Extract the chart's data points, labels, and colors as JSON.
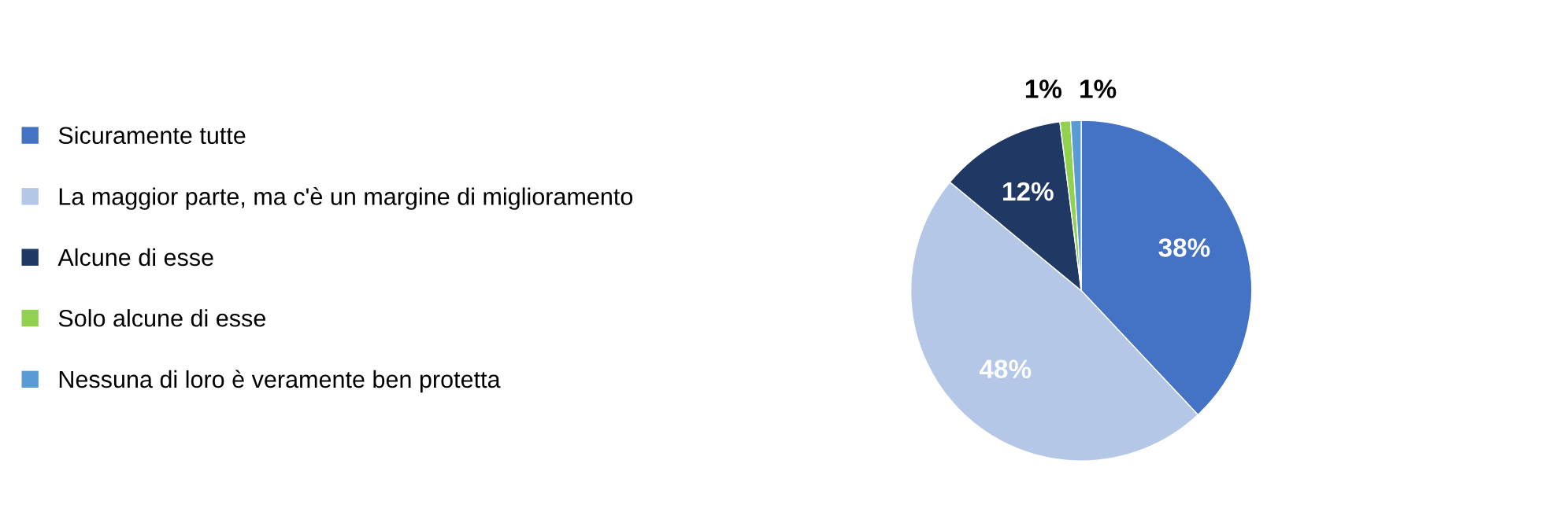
{
  "chart_data": {
    "type": "pie",
    "categories": [
      "Sicuramente tutte",
      "La maggior parte, ma c'è un margine di miglioramento",
      "Alcune di esse",
      "Solo alcune di esse",
      "Nessuna di loro è veramente ben protetta"
    ],
    "values": [
      38,
      48,
      12,
      1,
      1
    ],
    "colors": [
      "#4472c4",
      "#b4c7e7",
      "#1f3864",
      "#92d050",
      "#5b9bd5"
    ],
    "value_labels": [
      "38%",
      "48%",
      "12%",
      "1%",
      "1%"
    ],
    "legend": "left"
  }
}
